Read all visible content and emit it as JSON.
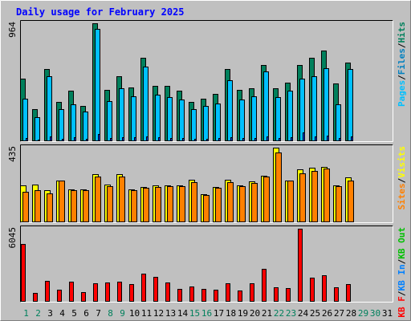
{
  "title": "Daily usage for February 2025",
  "colors": {
    "background": "#c0c0c0",
    "hits": "#00805c",
    "files": "#00c0ff",
    "pages": "#0040ff",
    "visits": "#ffff00",
    "sites": "#ff8000",
    "kb_in": "#0080ff",
    "kb_out": "#00c000",
    "kb_f": "#ff0000",
    "title": "#0000ff"
  },
  "chart_data": [
    {
      "type": "bar",
      "panel": "hits_files_pages",
      "ymax_label": "964",
      "ymax": 964,
      "axis_label_parts": [
        {
          "text": "Pages",
          "color": "#00c0ff"
        },
        {
          "text": "/",
          "color": "#000000"
        },
        {
          "text": "Files",
          "color": "#0080c0"
        },
        {
          "text": "/",
          "color": "#000000"
        },
        {
          "text": "Hits",
          "color": "#00805c"
        }
      ],
      "series": [
        {
          "name": "Hits",
          "values": [
            510,
            260,
            590,
            320,
            410,
            290,
            964,
            420,
            530,
            440,
            680,
            450,
            450,
            410,
            320,
            350,
            390,
            590,
            420,
            430,
            620,
            430,
            480,
            620,
            680,
            740,
            470,
            640
          ]
        },
        {
          "name": "Files",
          "values": [
            350,
            200,
            530,
            260,
            300,
            240,
            920,
            330,
            430,
            370,
            610,
            380,
            360,
            340,
            260,
            290,
            310,
            500,
            340,
            370,
            570,
            360,
            410,
            510,
            530,
            600,
            300,
            590
          ]
        },
        {
          "name": "Pages",
          "values": [
            25,
            15,
            40,
            20,
            30,
            18,
            60,
            28,
            35,
            30,
            40,
            30,
            28,
            26,
            20,
            22,
            24,
            35,
            26,
            28,
            38,
            28,
            30,
            70,
            40,
            45,
            25,
            40
          ]
        }
      ]
    },
    {
      "type": "bar",
      "panel": "visits_sites",
      "ymax_label": "435",
      "ymax": 435,
      "axis_label_parts": [
        {
          "text": "Sites",
          "color": "#ff8000"
        },
        {
          "text": "/",
          "color": "#000000"
        },
        {
          "text": "Visits",
          "color": "#ffff00"
        }
      ],
      "series": [
        {
          "name": "Visits",
          "values": [
            215,
            220,
            185,
            245,
            190,
            190,
            280,
            220,
            280,
            190,
            205,
            215,
            215,
            215,
            250,
            165,
            205,
            250,
            215,
            240,
            270,
            435,
            245,
            310,
            320,
            325,
            215,
            260
          ]
        },
        {
          "name": "Sites",
          "values": [
            180,
            185,
            170,
            245,
            185,
            185,
            265,
            210,
            265,
            185,
            200,
            205,
            210,
            210,
            235,
            160,
            200,
            235,
            210,
            230,
            265,
            405,
            245,
            285,
            300,
            315,
            210,
            245
          ]
        }
      ]
    },
    {
      "type": "bar",
      "panel": "kbytes",
      "ymax_label": "6045",
      "ymax": 6045,
      "axis_label_parts": [
        {
          "text": "KB F",
          "color": "#ff0000"
        },
        {
          "text": "/",
          "color": "#000000"
        },
        {
          "text": "KB In",
          "color": "#0080ff"
        },
        {
          "text": "/",
          "color": "#000000"
        },
        {
          "text": "KB Out",
          "color": "#00c000"
        }
      ],
      "series": [
        {
          "name": "KB F",
          "values": [
            4790,
            720,
            1720,
            1000,
            1630,
            810,
            1550,
            1570,
            1640,
            1450,
            2310,
            2050,
            1620,
            1080,
            1240,
            1030,
            980,
            1550,
            930,
            1540,
            2720,
            1220,
            1160,
            6045,
            1960,
            2200,
            1200,
            1450
          ]
        }
      ]
    }
  ],
  "x_labels": [
    "1",
    "2",
    "3",
    "4",
    "5",
    "6",
    "7",
    "8",
    "9",
    "10",
    "11",
    "12",
    "13",
    "14",
    "15",
    "16",
    "17",
    "18",
    "19",
    "20",
    "21",
    "22",
    "23",
    "24",
    "25",
    "26",
    "27",
    "28",
    "29",
    "30",
    "31"
  ],
  "weekend_days": [
    1,
    2,
    8,
    9,
    15,
    16,
    22,
    23,
    29,
    30
  ]
}
